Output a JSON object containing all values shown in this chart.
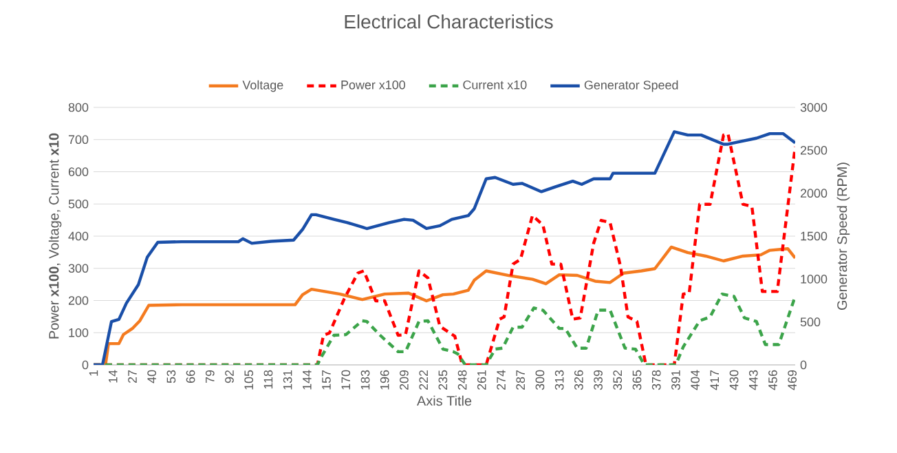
{
  "chart_data": {
    "type": "line",
    "title": "Electrical Characteristics",
    "xlabel": "Axis Title",
    "ylabel": "Power **x100**, Voltage, Current **x10**",
    "y2label": "Generator Speed (RPM)",
    "xlim": [
      1,
      471
    ],
    "xticks": [
      1,
      14,
      27,
      40,
      53,
      66,
      79,
      92,
      105,
      118,
      131,
      144,
      157,
      170,
      183,
      196,
      209,
      222,
      235,
      248,
      261,
      274,
      287,
      300,
      313,
      326,
      339,
      352,
      365,
      378,
      391,
      404,
      417,
      430,
      443,
      456,
      469
    ],
    "ylim": [
      0,
      800
    ],
    "yticks": [
      0,
      100,
      200,
      300,
      400,
      500,
      600,
      700,
      800
    ],
    "y2lim": [
      0,
      3000
    ],
    "y2ticks": [
      0,
      500,
      1000,
      1500,
      2000,
      2500,
      3000
    ],
    "grid": "y",
    "legend": "top",
    "series": [
      {
        "name": "Voltage",
        "color": "#f47b20",
        "line_style": "solid",
        "x": [
          1,
          9,
          11,
          18,
          21,
          27,
          32,
          38,
          60,
          100,
          136,
          141,
          147,
          166,
          181,
          196,
          212,
          224,
          235,
          242,
          252,
          256,
          264,
          279,
          295,
          304,
          313,
          325,
          337,
          347,
          356,
          368,
          377,
          388,
          399,
          411,
          423,
          436,
          448,
          454,
          466,
          471
        ],
        "values": [
          0,
          0,
          66,
          66,
          94,
          113,
          137,
          185,
          187,
          187,
          187,
          218,
          235,
          220,
          203,
          220,
          223,
          199,
          218,
          220,
          232,
          263,
          292,
          278,
          266,
          252,
          280,
          278,
          260,
          256,
          285,
          292,
          299,
          366,
          349,
          338,
          323,
          338,
          342,
          356,
          361,
          332
        ]
      },
      {
        "name": "Power x100",
        "color": "#ff0000",
        "line_style": "dashed",
        "x": [
          1,
          151,
          155,
          159,
          169,
          178,
          182,
          184,
          190,
          196,
          205,
          210,
          219,
          225,
          233,
          243,
          248,
          264,
          273,
          276,
          282,
          287,
          295,
          302,
          308,
          314,
          322,
          327,
          336,
          341,
          347,
          354,
          359,
          365,
          371,
          390,
          396,
          400,
          407,
          414,
          423,
          426,
          436,
          442,
          449,
          459,
          471
        ],
        "values": [
          0,
          0,
          92,
          99,
          206,
          285,
          292,
          270,
          199,
          199,
          92,
          94,
          292,
          270,
          120,
          89,
          0,
          0,
          142,
          149,
          313,
          328,
          464,
          435,
          313,
          313,
          142,
          146,
          378,
          449,
          442,
          306,
          149,
          135,
          0,
          0,
          220,
          223,
          499,
          499,
          714,
          718,
          499,
          492,
          228,
          228,
          678
        ]
      },
      {
        "name": "Current x10",
        "color": "#3ca44a",
        "line_style": "dashed",
        "x": [
          1,
          151,
          153,
          162,
          170,
          181,
          184,
          193,
          205,
          210,
          219,
          225,
          235,
          242,
          245,
          250,
          264,
          270,
          275,
          282,
          288,
          296,
          302,
          313,
          317,
          325,
          331,
          339,
          347,
          357,
          364,
          370,
          391,
          396,
          407,
          414,
          422,
          430,
          437,
          445,
          451,
          460,
          471
        ],
        "values": [
          0,
          0,
          20,
          92,
          94,
          137,
          135,
          92,
          41,
          41,
          135,
          137,
          49,
          41,
          34,
          0,
          0,
          49,
          52,
          117,
          117,
          177,
          170,
          113,
          113,
          52,
          52,
          170,
          170,
          52,
          49,
          0,
          0,
          56,
          137,
          149,
          220,
          213,
          146,
          135,
          63,
          63,
          213
        ]
      },
      {
        "name": "Generator Speed",
        "color": "#1a4fa8",
        "line_style": "solid",
        "axis": "y2",
        "x": [
          1,
          7,
          13,
          18,
          23,
          31,
          37,
          44,
          60,
          98,
          101,
          107,
          120,
          135,
          141,
          147,
          150,
          162,
          171,
          181,
          184,
          199,
          209,
          215,
          224,
          233,
          241,
          252,
          256,
          264,
          270,
          282,
          288,
          301,
          310,
          322,
          328,
          336,
          347,
          349,
          377,
          390,
          399,
          408,
          423,
          426,
          433,
          445,
          454,
          463,
          471
        ],
        "values": [
          0,
          0,
          504,
          531,
          719,
          934,
          1256,
          1428,
          1435,
          1435,
          1470,
          1417,
          1440,
          1454,
          1578,
          1750,
          1750,
          1696,
          1658,
          1605,
          1588,
          1658,
          1696,
          1685,
          1589,
          1621,
          1696,
          1739,
          1819,
          2168,
          2184,
          2104,
          2115,
          2018,
          2072,
          2141,
          2104,
          2168,
          2168,
          2233,
          2233,
          2716,
          2678,
          2678,
          2571,
          2571,
          2598,
          2641,
          2694,
          2694,
          2587
        ]
      }
    ]
  }
}
